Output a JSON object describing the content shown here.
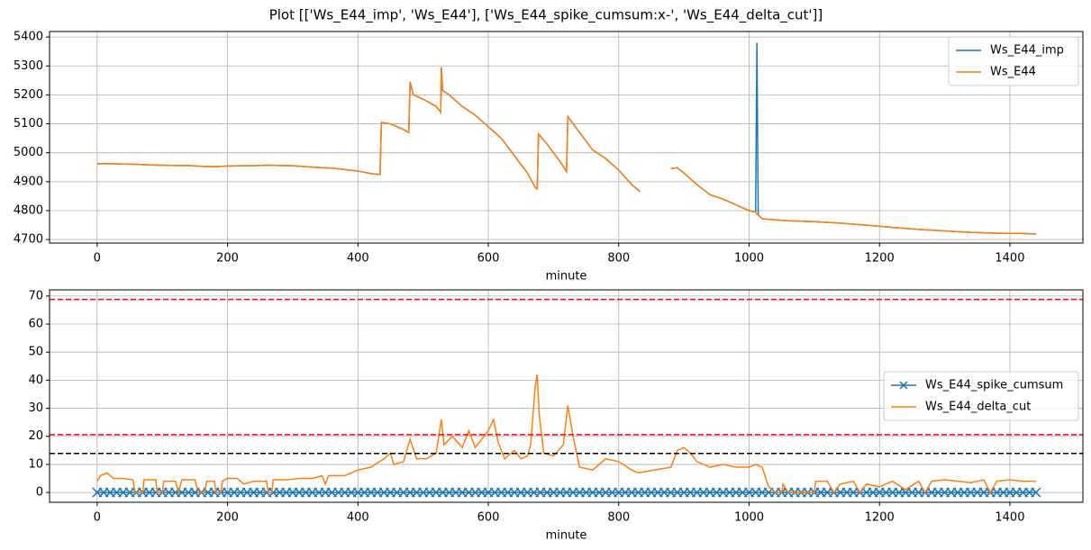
{
  "title": "Plot [['Ws_E44_imp', 'Ws_E44'], ['Ws_E44_spike_cumsum:x-', 'Ws_E44_delta_cut']]",
  "chart_data": [
    {
      "type": "line",
      "xlabel": "minute",
      "grid": true,
      "legend": "upper right",
      "xlim": [
        -73,
        1512
      ],
      "ylim": [
        4688,
        5419
      ],
      "xticks": [
        0,
        200,
        400,
        600,
        800,
        1000,
        1200,
        1400
      ],
      "yticks": [
        4700,
        4800,
        4900,
        5000,
        5100,
        5200,
        5300,
        5400
      ],
      "x": [
        0,
        20,
        40,
        60,
        80,
        100,
        120,
        140,
        160,
        180,
        200,
        220,
        240,
        260,
        280,
        300,
        320,
        340,
        360,
        380,
        400,
        420,
        434,
        436,
        450,
        470,
        478,
        480,
        485,
        500,
        520,
        527,
        528,
        530,
        540,
        560,
        580,
        600,
        620,
        640,
        660,
        672,
        675,
        677,
        690,
        710,
        720,
        722,
        740,
        760,
        780,
        800,
        820,
        833,
        835,
        880,
        890,
        900,
        920,
        940,
        960,
        980,
        1000,
        1010,
        1012,
        1014,
        1020,
        1040,
        1060,
        1100,
        1140,
        1180,
        1220,
        1260,
        1300,
        1340,
        1380,
        1420,
        1440
      ],
      "series": [
        {
          "name": "Ws_E44_imp",
          "color": "#1f77b4",
          "values": [
            4962,
            4962,
            4961,
            4960,
            4958,
            4957,
            4956,
            4956,
            4953,
            4952,
            4954,
            4955,
            4955,
            4957,
            4956,
            4955,
            4952,
            4949,
            4947,
            4942,
            4937,
            4928,
            4925,
            5105,
            5100,
            5080,
            5070,
            5245,
            5200,
            5185,
            5160,
            5140,
            5295,
            5215,
            5200,
            5160,
            5130,
            5090,
            5050,
            4990,
            4930,
            4880,
            4875,
            5065,
            5030,
            4970,
            4935,
            5125,
            5070,
            5010,
            4980,
            4940,
            4890,
            4865,
            null,
            4945,
            4948,
            4930,
            4890,
            4855,
            4840,
            4820,
            4800,
            4795,
            5380,
            4785,
            4772,
            4768,
            4765,
            4762,
            4757,
            4750,
            4742,
            4735,
            4730,
            4725,
            4722,
            4721,
            4719
          ]
        },
        {
          "name": "Ws_E44",
          "color": "#ff7f0e",
          "values": [
            4962,
            4962,
            4961,
            4960,
            4958,
            4957,
            4956,
            4956,
            4953,
            4952,
            4954,
            4955,
            4955,
            4957,
            4956,
            4955,
            4952,
            4949,
            4947,
            4942,
            4937,
            4928,
            4925,
            5105,
            5100,
            5080,
            5070,
            5245,
            5200,
            5185,
            5160,
            5140,
            5295,
            5215,
            5200,
            5160,
            5130,
            5090,
            5050,
            4990,
            4930,
            4880,
            4875,
            5065,
            5030,
            4970,
            4935,
            5125,
            5070,
            5010,
            4980,
            4940,
            4890,
            4865,
            null,
            4945,
            4948,
            4930,
            4890,
            4855,
            4840,
            4820,
            4800,
            4795,
            4788,
            4785,
            4772,
            4768,
            4765,
            4762,
            4757,
            4750,
            4742,
            4735,
            4730,
            4725,
            4722,
            4721,
            4719
          ]
        }
      ]
    },
    {
      "type": "line",
      "xlabel": "minute",
      "grid": true,
      "legend": "center right",
      "xlim": [
        -73,
        1512
      ],
      "ylim": [
        -3.5,
        72.2
      ],
      "xticks": [
        0,
        200,
        400,
        600,
        800,
        1000,
        1200,
        1400
      ],
      "yticks": [
        0,
        10,
        20,
        30,
        40,
        50,
        60,
        70
      ],
      "hlines": [
        {
          "value": 68.8,
          "color": "#ff0000"
        },
        {
          "value": 20.6,
          "color": "#ff0000"
        },
        {
          "value": 13.9,
          "color": "#000000"
        }
      ],
      "series": [
        {
          "name": "Ws_E44_spike_cumsum",
          "color": "#1f77b4",
          "marker": "x",
          "x": [
            0,
            10,
            20,
            30,
            40,
            50,
            60,
            70,
            80,
            90,
            100,
            110,
            120,
            130,
            140,
            150,
            160,
            170,
            180,
            190,
            200,
            210,
            220,
            230,
            240,
            250,
            260,
            270,
            280,
            290,
            300,
            310,
            320,
            330,
            340,
            350,
            360,
            370,
            380,
            390,
            400,
            410,
            420,
            430,
            440,
            450,
            460,
            470,
            480,
            490,
            500,
            510,
            520,
            530,
            540,
            550,
            560,
            570,
            580,
            590,
            600,
            610,
            620,
            630,
            640,
            650,
            660,
            670,
            680,
            690,
            700,
            710,
            720,
            730,
            740,
            750,
            760,
            770,
            780,
            790,
            800,
            810,
            820,
            830,
            840,
            850,
            860,
            870,
            880,
            890,
            900,
            910,
            920,
            930,
            940,
            950,
            960,
            970,
            980,
            990,
            1000,
            1010,
            1020,
            1030,
            1040,
            1050,
            1060,
            1070,
            1080,
            1090,
            1100,
            1110,
            1120,
            1130,
            1140,
            1150,
            1160,
            1170,
            1180,
            1190,
            1200,
            1210,
            1220,
            1230,
            1240,
            1250,
            1260,
            1270,
            1280,
            1290,
            1300,
            1310,
            1320,
            1330,
            1340,
            1350,
            1360,
            1370,
            1380,
            1390,
            1400,
            1410,
            1420,
            1430,
            1440
          ],
          "values": [
            0,
            0,
            0,
            0,
            0,
            0,
            0,
            0,
            0,
            0,
            0,
            0,
            0,
            0,
            0,
            0,
            0,
            0,
            0,
            0,
            0,
            0,
            0,
            0,
            0,
            0,
            0,
            0,
            0,
            0,
            0,
            0,
            0,
            0,
            0,
            0,
            0,
            0,
            0,
            0,
            0,
            0,
            0,
            0,
            0,
            0,
            0,
            0,
            0,
            0,
            0,
            0,
            0,
            0,
            0,
            0,
            0,
            0,
            0,
            0,
            0,
            0,
            0,
            0,
            0,
            0,
            0,
            0,
            0,
            0,
            0,
            0,
            0,
            0,
            0,
            0,
            0,
            0,
            0,
            0,
            0,
            0,
            0,
            0,
            0,
            0,
            0,
            0,
            0,
            0,
            0,
            0,
            0,
            0,
            0,
            0,
            0,
            0,
            0,
            0,
            0,
            0,
            0,
            0,
            0,
            0,
            0,
            0,
            0,
            0,
            0,
            0,
            0,
            0,
            0,
            0,
            0,
            0,
            0,
            0,
            0,
            0,
            0,
            0,
            0,
            0,
            0,
            0,
            0,
            0,
            0,
            0,
            0,
            0,
            0,
            0,
            0,
            0,
            0,
            0,
            0,
            0,
            0,
            0,
            0
          ]
        },
        {
          "name": "Ws_E44_delta_cut",
          "color": "#ff7f0e",
          "x": [
            0,
            5,
            15,
            25,
            40,
            55,
            58,
            70,
            72,
            90,
            92,
            100,
            102,
            120,
            125,
            130,
            150,
            155,
            165,
            168,
            180,
            182,
            190,
            192,
            200,
            215,
            225,
            240,
            260,
            262,
            268,
            270,
            290,
            310,
            330,
            345,
            350,
            355,
            380,
            400,
            420,
            440,
            450,
            455,
            470,
            480,
            490,
            505,
            520,
            528,
            532,
            545,
            560,
            570,
            580,
            590,
            600,
            608,
            615,
            625,
            640,
            650,
            660,
            665,
            672,
            675,
            678,
            685,
            700,
            715,
            722,
            730,
            740,
            760,
            780,
            800,
            820,
            830,
            880,
            890,
            900,
            910,
            920,
            940,
            960,
            980,
            1000,
            1010,
            1020,
            1030,
            1040,
            1050,
            1052,
            1060,
            1100,
            1102,
            1120,
            1130,
            1140,
            1160,
            1170,
            1180,
            1200,
            1210,
            1220,
            1240,
            1260,
            1270,
            1280,
            1300,
            1320,
            1340,
            1360,
            1370,
            1380,
            1400,
            1420,
            1440
          ],
          "values": [
            4,
            6,
            7,
            5,
            5,
            4.5,
            0,
            0,
            4.5,
            4.5,
            0,
            0,
            4,
            4,
            0,
            4.5,
            4.5,
            0,
            0,
            4,
            4,
            0,
            0,
            4,
            5,
            5,
            3,
            4,
            4,
            0,
            0,
            4.5,
            4.5,
            5,
            5,
            6,
            3,
            6,
            6,
            8,
            9,
            12,
            14,
            10,
            11,
            19,
            12,
            12,
            14,
            26,
            17,
            20,
            16,
            22,
            16,
            19,
            22,
            26,
            18,
            12,
            15,
            12,
            13,
            17,
            38,
            42,
            28,
            14,
            13,
            17,
            31,
            20,
            9,
            8,
            12,
            11,
            8,
            7,
            9,
            15,
            16,
            14,
            11,
            9,
            10,
            9,
            9,
            10,
            9,
            2,
            0,
            0,
            3,
            0,
            0,
            4,
            4,
            0,
            3,
            4,
            0,
            3,
            2,
            3,
            4,
            1,
            4,
            0,
            4,
            4.5,
            4,
            3.5,
            4.5,
            0,
            4,
            4.5,
            4,
            4
          ]
        }
      ]
    }
  ]
}
